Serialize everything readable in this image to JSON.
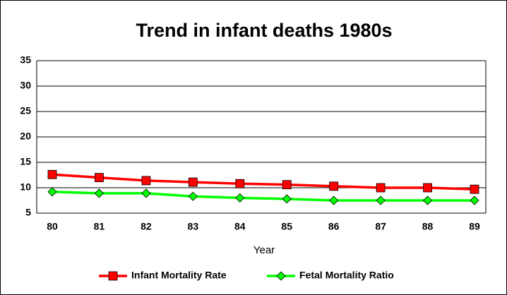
{
  "chart_data": {
    "type": "line",
    "title": "Trend in infant deaths 1980s",
    "x_label": "Year",
    "categories": [
      "80",
      "81",
      "82",
      "83",
      "84",
      "85",
      "86",
      "87",
      "88",
      "89"
    ],
    "series": [
      {
        "name": "Infant Mortality Rate",
        "color": "#ff0000",
        "marker": "square",
        "values": [
          12.6,
          12.0,
          11.4,
          11.1,
          10.8,
          10.6,
          10.3,
          10.0,
          10.0,
          9.7
        ]
      },
      {
        "name": "Fetal Mortality Ratio",
        "color": "#00ff00",
        "marker": "diamond",
        "values": [
          9.2,
          8.9,
          8.9,
          8.3,
          8.0,
          7.8,
          7.5,
          7.5,
          7.5,
          7.5
        ]
      }
    ],
    "ylim": [
      5,
      35
    ],
    "yticks": [
      5,
      10,
      15,
      20,
      25,
      30,
      35
    ],
    "grid": true,
    "legend": "bottom"
  }
}
